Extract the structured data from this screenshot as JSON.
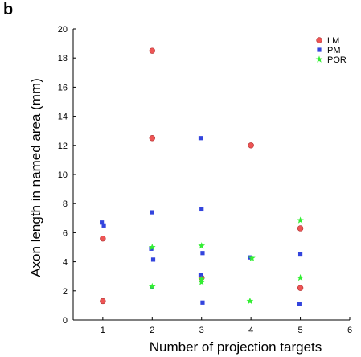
{
  "panel_label": "b",
  "chart_data": {
    "type": "scatter",
    "title": "",
    "xlabel": "Number of projection targets",
    "ylabel": "Axon length in named area (mm)",
    "xlim": [
      0.4,
      6
    ],
    "ylim": [
      0,
      20
    ],
    "xticks": [
      1,
      2,
      3,
      4,
      5,
      6
    ],
    "yticks": [
      0,
      2,
      4,
      6,
      8,
      10,
      12,
      14,
      16,
      18,
      20
    ],
    "grid": false,
    "legend_position": "top-right",
    "series": [
      {
        "name": "LM",
        "marker": "circle",
        "color": "#ee5555",
        "points": [
          {
            "x": 1,
            "y": 5.6
          },
          {
            "x": 1,
            "y": 1.3
          },
          {
            "x": 2,
            "y": 18.5
          },
          {
            "x": 2,
            "y": 12.5
          },
          {
            "x": 3,
            "y": 2.9
          },
          {
            "x": 4,
            "y": 12.0
          },
          {
            "x": 5,
            "y": 6.3
          },
          {
            "x": 5,
            "y": 2.2
          }
        ]
      },
      {
        "name": "PM",
        "marker": "square",
        "color": "#3344dd",
        "points": [
          {
            "x": 0.98,
            "y": 6.7
          },
          {
            "x": 1.02,
            "y": 6.5
          },
          {
            "x": 2,
            "y": 7.4
          },
          {
            "x": 1.98,
            "y": 4.9
          },
          {
            "x": 2.02,
            "y": 4.15
          },
          {
            "x": 2,
            "y": 2.25
          },
          {
            "x": 2.98,
            "y": 12.5
          },
          {
            "x": 3,
            "y": 7.6
          },
          {
            "x": 3.02,
            "y": 4.6
          },
          {
            "x": 2.98,
            "y": 3.1
          },
          {
            "x": 3.02,
            "y": 1.2
          },
          {
            "x": 3.98,
            "y": 4.3
          },
          {
            "x": 5,
            "y": 4.5
          },
          {
            "x": 4.98,
            "y": 1.1
          }
        ]
      },
      {
        "name": "POR",
        "marker": "star",
        "color": "#33ee33",
        "points": [
          {
            "x": 2,
            "y": 5.0
          },
          {
            "x": 2,
            "y": 2.3
          },
          {
            "x": 3,
            "y": 5.1
          },
          {
            "x": 3,
            "y": 2.8
          },
          {
            "x": 3,
            "y": 2.6
          },
          {
            "x": 4.02,
            "y": 4.25
          },
          {
            "x": 3.98,
            "y": 1.3
          },
          {
            "x": 5,
            "y": 6.85
          },
          {
            "x": 5,
            "y": 2.9
          }
        ]
      }
    ]
  }
}
